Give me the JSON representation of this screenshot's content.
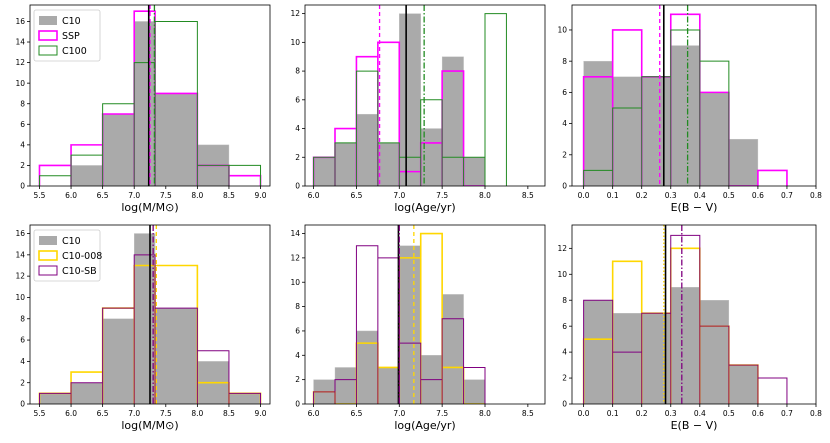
{
  "chart_data": [
    {
      "type": "histogram",
      "xlabel": "log(M/M$_\\odot$)",
      "xlabel_display": "log(M/M⊙)",
      "xlim": [
        5.35,
        9.15
      ],
      "ylim": [
        0,
        17.6
      ],
      "xticks": [
        "5.5",
        "6.0",
        "6.5",
        "7.0",
        "7.5",
        "8.0",
        "8.5",
        "9.0"
      ],
      "yticks": [
        "0",
        "2",
        "4",
        "6",
        "8",
        "10",
        "12",
        "14",
        "16"
      ],
      "xtick_values": [
        5.5,
        6.0,
        6.5,
        7.0,
        7.5,
        8.0,
        8.5,
        9.0
      ],
      "ytick_values": [
        0,
        2,
        4,
        6,
        8,
        10,
        12,
        14,
        16
      ],
      "legend": {
        "position": "upper-left",
        "labels": [
          "C10",
          "SSP",
          "C100"
        ]
      },
      "series": [
        {
          "name": "C10",
          "style": "filled",
          "color": "#aaaaaa",
          "edges": [
            5.5,
            6.0,
            6.5,
            7.0,
            7.33,
            8.0,
            8.5,
            9.0
          ],
          "counts": [
            0,
            2,
            7,
            16,
            9,
            4,
            0
          ]
        },
        {
          "name": "SSP",
          "style": "step",
          "color": "#ff00ff",
          "edges": [
            5.5,
            6.0,
            6.5,
            7.0,
            7.33,
            8.0,
            8.5,
            9.0
          ],
          "counts": [
            2,
            4,
            7,
            17,
            9,
            2,
            1
          ]
        },
        {
          "name": "C100",
          "style": "step",
          "color": "#228b22",
          "edges": [
            5.5,
            6.0,
            6.5,
            7.0,
            7.33,
            8.0,
            8.5,
            9.0
          ],
          "counts": [
            1,
            3,
            8,
            12,
            16,
            2,
            2
          ]
        }
      ],
      "vlines": [
        {
          "x": 7.23,
          "color": "#000000",
          "dash": "solid"
        },
        {
          "x": 7.25,
          "color": "#ff00ff",
          "dash": "dashed"
        },
        {
          "x": 7.32,
          "color": "#228b22",
          "dash": "dashdot"
        }
      ]
    },
    {
      "type": "histogram",
      "xlabel": "log(Age/yr)",
      "xlim": [
        5.9,
        8.7
      ],
      "ylim": [
        0,
        12.6
      ],
      "xticks": [
        "6.0",
        "6.5",
        "7.0",
        "7.5",
        "8.0",
        "8.5"
      ],
      "yticks": [
        "0",
        "2",
        "4",
        "6",
        "8",
        "10",
        "12"
      ],
      "xtick_values": [
        6.0,
        6.5,
        7.0,
        7.5,
        8.0,
        8.5
      ],
      "ytick_values": [
        0,
        2,
        4,
        6,
        8,
        10,
        12
      ],
      "series": [
        {
          "name": "C10",
          "style": "filled",
          "color": "#aaaaaa",
          "edges": [
            6.0,
            6.25,
            6.5,
            6.75,
            7.0,
            7.25,
            7.5,
            7.75,
            8.0
          ],
          "counts": [
            2,
            3,
            5,
            3,
            12,
            4,
            9,
            2
          ]
        },
        {
          "name": "SSP",
          "style": "step",
          "color": "#ff00ff",
          "edges": [
            6.0,
            6.25,
            6.5,
            6.75,
            7.0,
            7.25,
            7.5,
            7.75,
            8.0
          ],
          "counts": [
            2,
            4,
            9,
            10,
            1,
            3,
            8,
            0
          ]
        },
        {
          "name": "C100",
          "style": "step",
          "color": "#228b22",
          "edges": [
            6.0,
            6.25,
            6.5,
            6.75,
            7.0,
            7.25,
            7.5,
            7.75,
            8.0,
            8.25
          ],
          "counts": [
            2,
            3,
            8,
            3,
            2,
            6,
            2,
            2,
            12
          ]
        }
      ],
      "vlines": [
        {
          "x": 7.08,
          "color": "#000000",
          "dash": "solid"
        },
        {
          "x": 6.77,
          "color": "#ff00ff",
          "dash": "dashed"
        },
        {
          "x": 7.29,
          "color": "#228b22",
          "dash": "dashdot"
        }
      ]
    },
    {
      "type": "histogram",
      "xlabel": "E(B − V)",
      "xlim": [
        -0.04,
        0.8
      ],
      "ylim": [
        0,
        11.6
      ],
      "xticks": [
        "0.0",
        "0.1",
        "0.2",
        "0.3",
        "0.4",
        "0.5",
        "0.6",
        "0.7",
        "0.8"
      ],
      "yticks": [
        "0",
        "2",
        "4",
        "6",
        "8",
        "10"
      ],
      "xtick_values": [
        0.0,
        0.1,
        0.2,
        0.3,
        0.4,
        0.5,
        0.6,
        0.7,
        0.8
      ],
      "ytick_values": [
        0,
        2,
        4,
        6,
        8,
        10
      ],
      "series": [
        {
          "name": "C10",
          "style": "filled",
          "color": "#aaaaaa",
          "edges": [
            0.0,
            0.1,
            0.2,
            0.3,
            0.4,
            0.5,
            0.6
          ],
          "counts": [
            8,
            7,
            7,
            9,
            6,
            3
          ]
        },
        {
          "name": "SSP",
          "style": "step",
          "color": "#ff00ff",
          "edges": [
            0.0,
            0.1,
            0.2,
            0.3,
            0.4,
            0.5,
            0.6,
            0.7
          ],
          "counts": [
            7,
            10,
            7,
            11,
            6,
            0,
            1
          ]
        },
        {
          "name": "C100",
          "style": "step",
          "color": "#228b22",
          "edges": [
            0.0,
            0.1,
            0.2,
            0.3,
            0.4,
            0.5
          ],
          "counts": [
            1,
            5,
            7,
            10,
            8
          ]
        }
      ],
      "vlines": [
        {
          "x": 0.276,
          "color": "#000000",
          "dash": "solid"
        },
        {
          "x": 0.262,
          "color": "#ff00ff",
          "dash": "dashed"
        },
        {
          "x": 0.358,
          "color": "#228b22",
          "dash": "dashdot"
        }
      ]
    },
    {
      "type": "histogram",
      "xlabel": "log(M/M$_\\odot$)",
      "xlabel_display": "log(M/M⊙)",
      "xlim": [
        5.35,
        9.15
      ],
      "ylim": [
        0,
        16.8
      ],
      "xticks": [
        "5.5",
        "6.0",
        "6.5",
        "7.0",
        "7.5",
        "8.0",
        "8.5",
        "9.0"
      ],
      "yticks": [
        "0",
        "2",
        "4",
        "6",
        "8",
        "10",
        "12",
        "14",
        "16"
      ],
      "xtick_values": [
        5.5,
        6.0,
        6.5,
        7.0,
        7.5,
        8.0,
        8.5,
        9.0
      ],
      "ytick_values": [
        0,
        2,
        4,
        6,
        8,
        10,
        12,
        14,
        16
      ],
      "legend": {
        "position": "upper-left",
        "labels": [
          "C10",
          "C10-008",
          "C10-SB"
        ]
      },
      "series": [
        {
          "name": "C10",
          "style": "filled",
          "color": "#aaaaaa",
          "edges": [
            5.5,
            6.0,
            6.5,
            7.0,
            7.33,
            8.0,
            8.5,
            9.0
          ],
          "counts": [
            1,
            2,
            8,
            16,
            9,
            4,
            1
          ]
        },
        {
          "name": "C10-008",
          "style": "step",
          "color": "#ffd700",
          "edges": [
            5.5,
            6.0,
            6.5,
            7.0,
            7.33,
            8.0,
            8.5,
            9.0
          ],
          "counts": [
            1,
            3,
            9,
            13,
            13,
            2,
            1
          ]
        },
        {
          "name": "C10-SB",
          "style": "step",
          "color": "#800080",
          "edges": [
            5.5,
            6.0,
            6.5,
            7.0,
            7.33,
            8.0,
            8.5,
            9.0
          ],
          "counts": [
            1,
            2,
            9,
            14,
            9,
            5,
            1
          ]
        }
      ],
      "vlines": [
        {
          "x": 7.25,
          "color": "#000000",
          "dash": "solid"
        },
        {
          "x": 7.35,
          "color": "#ffd700",
          "dash": "dashed"
        },
        {
          "x": 7.3,
          "color": "#800080",
          "dash": "dashdot"
        }
      ]
    },
    {
      "type": "histogram",
      "xlabel": "log(Age/yr)",
      "xlim": [
        5.9,
        8.7
      ],
      "ylim": [
        0,
        14.7
      ],
      "xticks": [
        "6.0",
        "6.5",
        "7.0",
        "7.5",
        "8.0",
        "8.5"
      ],
      "yticks": [
        "0",
        "2",
        "4",
        "6",
        "8",
        "10",
        "12",
        "14"
      ],
      "xtick_values": [
        6.0,
        6.5,
        7.0,
        7.5,
        8.0,
        8.5
      ],
      "ytick_values": [
        0,
        2,
        4,
        6,
        8,
        10,
        12,
        14
      ],
      "series": [
        {
          "name": "C10",
          "style": "filled",
          "color": "#aaaaaa",
          "edges": [
            6.0,
            6.25,
            6.5,
            6.75,
            7.0,
            7.25,
            7.5,
            7.75,
            8.0
          ],
          "counts": [
            2,
            3,
            6,
            3,
            13,
            4,
            9,
            2
          ]
        },
        {
          "name": "C10-008",
          "style": "step",
          "color": "#ffd700",
          "edges": [
            6.0,
            6.25,
            6.5,
            6.75,
            7.0,
            7.25,
            7.5,
            7.75,
            8.0
          ],
          "counts": [
            1,
            0,
            5,
            3,
            12,
            14,
            3,
            0
          ]
        },
        {
          "name": "C10-SB",
          "style": "step",
          "color": "#800080",
          "edges": [
            6.0,
            6.25,
            6.5,
            6.75,
            7.0,
            7.25,
            7.5,
            7.75,
            8.0
          ],
          "counts": [
            1,
            2,
            13,
            12,
            5,
            2,
            7,
            3
          ]
        }
      ],
      "vlines": [
        {
          "x": 6.99,
          "color": "#000000",
          "dash": "solid"
        },
        {
          "x": 7.17,
          "color": "#ffd700",
          "dash": "dashed"
        },
        {
          "x": 7.0,
          "color": "#800080",
          "dash": "dashdot"
        }
      ]
    },
    {
      "type": "histogram",
      "xlabel": "E(B − V)",
      "xlim": [
        -0.04,
        0.8
      ],
      "ylim": [
        0,
        13.8
      ],
      "xticks": [
        "0.0",
        "0.1",
        "0.2",
        "0.3",
        "0.4",
        "0.5",
        "0.6",
        "0.7",
        "0.8"
      ],
      "yticks": [
        "0",
        "2",
        "4",
        "6",
        "8",
        "10",
        "12"
      ],
      "xtick_values": [
        0.0,
        0.1,
        0.2,
        0.3,
        0.4,
        0.5,
        0.6,
        0.7,
        0.8
      ],
      "ytick_values": [
        0,
        2,
        4,
        6,
        8,
        10,
        12
      ],
      "series": [
        {
          "name": "C10",
          "style": "filled",
          "color": "#aaaaaa",
          "edges": [
            0.0,
            0.1,
            0.2,
            0.3,
            0.4,
            0.5,
            0.6
          ],
          "counts": [
            8,
            7,
            7,
            9,
            8,
            3
          ]
        },
        {
          "name": "C10-008",
          "style": "step",
          "color": "#ffd700",
          "edges": [
            0.0,
            0.1,
            0.2,
            0.3,
            0.4,
            0.5,
            0.6
          ],
          "counts": [
            5,
            11,
            7,
            12,
            6,
            3
          ]
        },
        {
          "name": "C10-SB",
          "style": "step",
          "color": "#800080",
          "edges": [
            0.0,
            0.1,
            0.2,
            0.3,
            0.4,
            0.5,
            0.6,
            0.7
          ],
          "counts": [
            8,
            4,
            7,
            13,
            6,
            3,
            2
          ]
        }
      ],
      "vlines": [
        {
          "x": 0.282,
          "color": "#000000",
          "dash": "solid"
        },
        {
          "x": 0.276,
          "color": "#ffd700",
          "dash": "dotted"
        },
        {
          "x": 0.338,
          "color": "#800080",
          "dash": "dashdot"
        }
      ]
    }
  ]
}
